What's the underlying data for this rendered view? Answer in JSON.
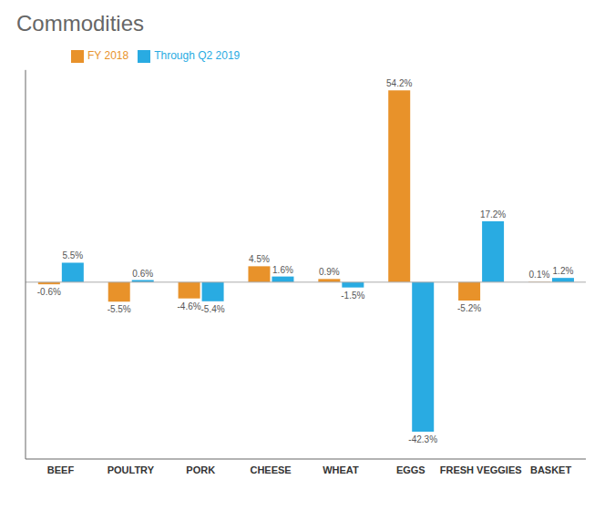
{
  "chart_data": {
    "type": "bar",
    "title": "Commodities",
    "categories": [
      "BEEF",
      "POULTRY",
      "PORK",
      "CHEESE",
      "WHEAT",
      "EGGS",
      "FRESH VEGGIES",
      "BASKET"
    ],
    "series": [
      {
        "name": "FY 2018",
        "color": "#E8922A",
        "values": [
          -0.6,
          -5.5,
          -4.6,
          4.5,
          0.9,
          54.2,
          -5.2,
          0.1
        ],
        "value_labels": [
          "-0.6%",
          "-5.5%",
          "-4.6%",
          "4.5%",
          "0.9%",
          "54.2%",
          "-5.2%",
          "0.1%"
        ]
      },
      {
        "name": "Through Q2 2019",
        "color": "#29ABE2",
        "values": [
          5.5,
          0.6,
          -5.4,
          1.6,
          -1.5,
          -42.3,
          17.2,
          1.2
        ],
        "value_labels": [
          "5.5%",
          "0.6%",
          "-5.4%",
          "1.6%",
          "-1.5%",
          "-42.3%",
          "17.2%",
          "1.2%"
        ]
      }
    ],
    "ylim": [
      -50,
      60
    ],
    "data_labels": true,
    "tick_labels": "x",
    "legend": "upper left",
    "grid": false
  }
}
